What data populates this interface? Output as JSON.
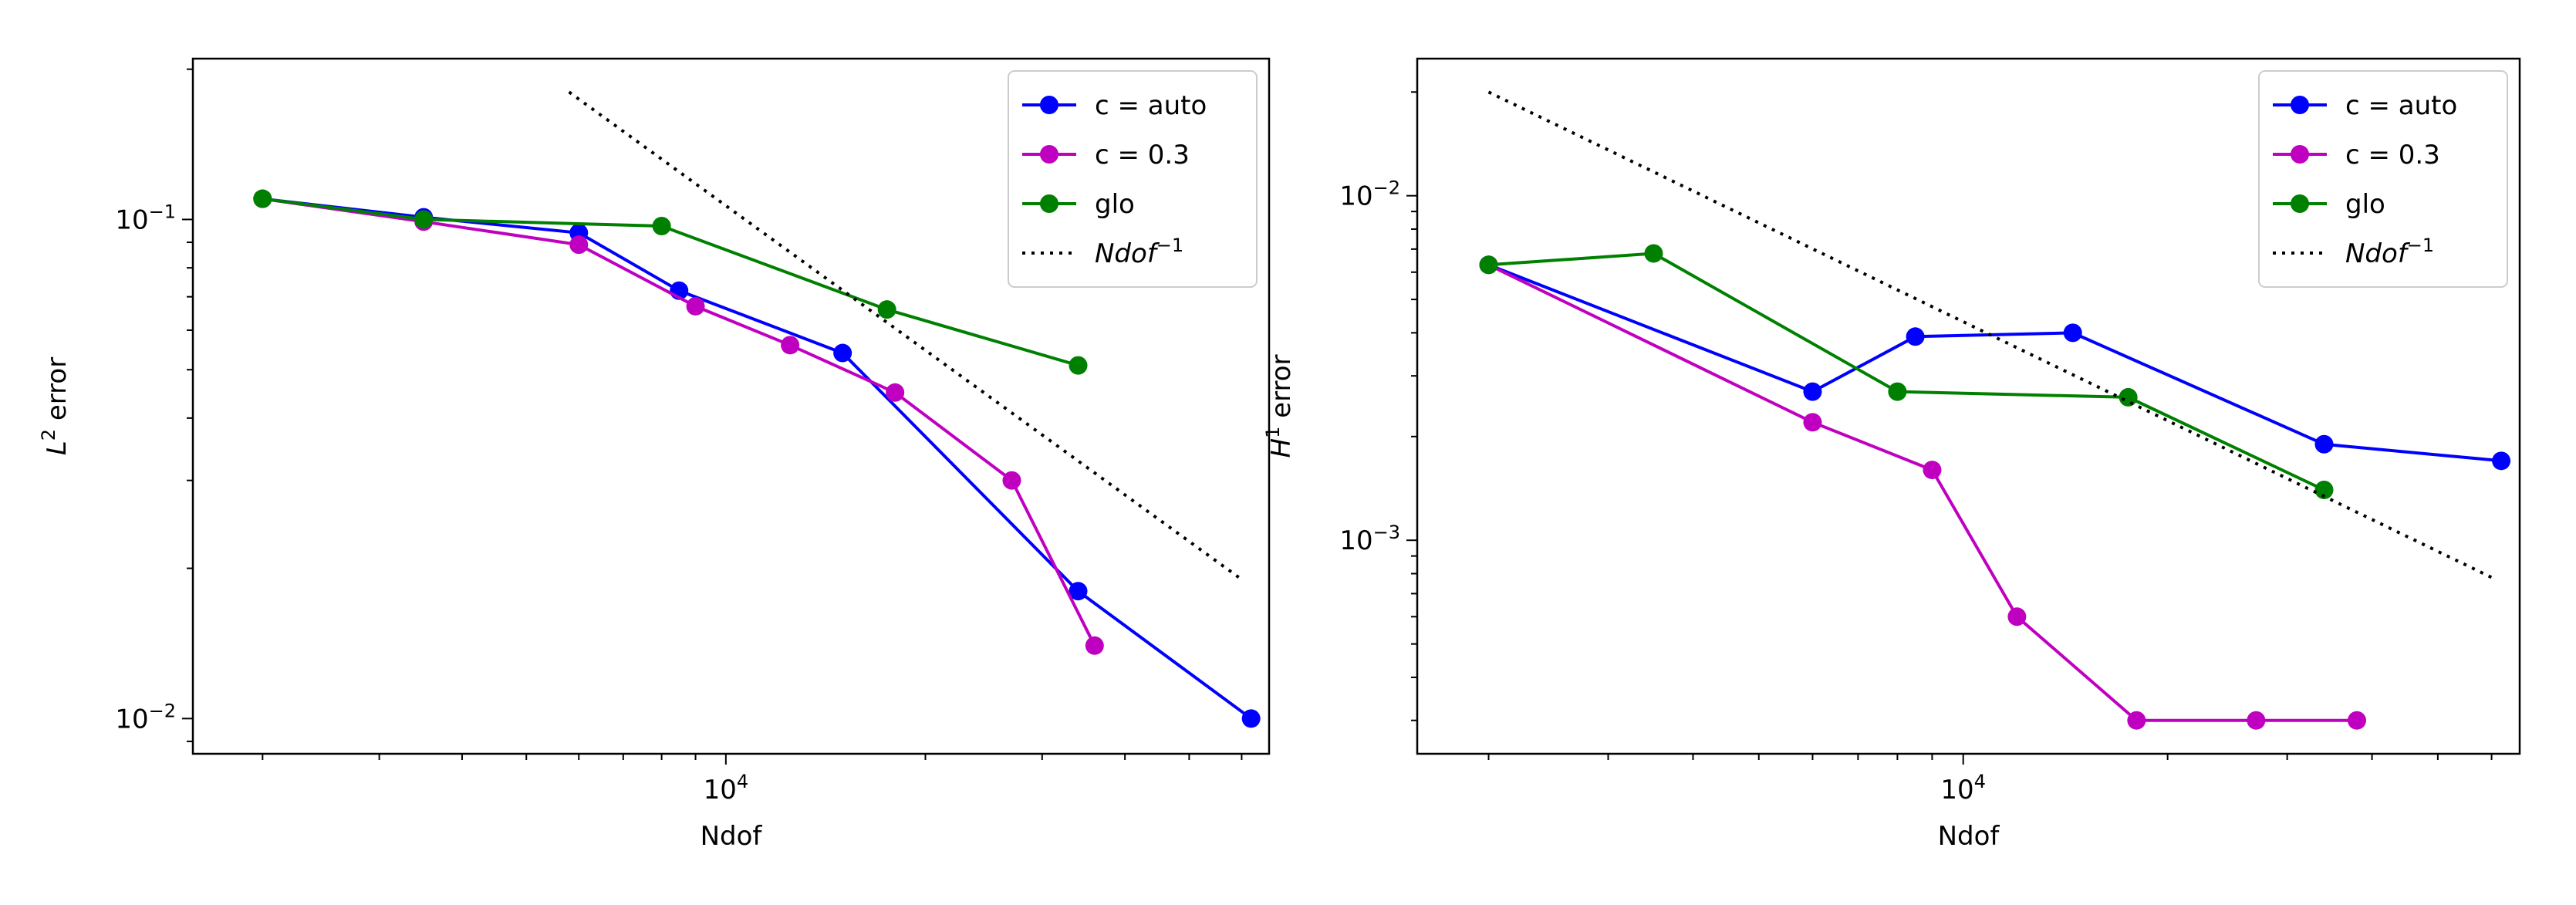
{
  "chart_data": [
    {
      "type": "line",
      "xscale": "log",
      "yscale": "log",
      "xlabel": "Ndof",
      "ylabel_base": "L",
      "ylabel_sup": "2",
      "ylabel_rest": " error",
      "xlim": [
        1570,
        66000
      ],
      "ylim": [
        0.0085,
        0.21
      ],
      "xticks": [
        {
          "value": 10000,
          "base": "10",
          "exp": "4"
        }
      ],
      "yticks": [
        {
          "value": 0.1,
          "base": "10",
          "exp": "−1"
        },
        {
          "value": 0.01,
          "base": "10",
          "exp": "−2"
        }
      ],
      "legend_position": "top-right",
      "series": [
        {
          "name": "c = auto",
          "color": "#0000ff",
          "style": "solid-marker",
          "x": [
            2000,
            3500,
            6000,
            8500,
            15000,
            34000,
            62000
          ],
          "y": [
            0.11,
            0.101,
            0.094,
            0.072,
            0.054,
            0.018,
            0.01
          ]
        },
        {
          "name": "c = 0.3",
          "color": "#c000c0",
          "style": "solid-marker",
          "x": [
            2000,
            3500,
            6000,
            9000,
            12500,
            18000,
            27000,
            36000
          ],
          "y": [
            0.11,
            0.099,
            0.089,
            0.067,
            0.056,
            0.045,
            0.03,
            0.014
          ]
        },
        {
          "name": "glo",
          "color": "#008000",
          "style": "solid-marker",
          "x": [
            2000,
            3500,
            8000,
            17500,
            34000
          ],
          "y": [
            0.11,
            0.1,
            0.097,
            0.066,
            0.051
          ]
        },
        {
          "name": "Ndof",
          "name_sup": "−1",
          "color": "#000000",
          "style": "dotted",
          "x": [
            5800,
            60000
          ],
          "y": [
            0.18,
            0.019
          ]
        }
      ]
    },
    {
      "type": "line",
      "xscale": "log",
      "yscale": "log",
      "xlabel": "Ndof",
      "ylabel_base": "H",
      "ylabel_sup": "1",
      "ylabel_rest": " error",
      "xlim": [
        1570,
        66000
      ],
      "ylim": [
        0.00024,
        0.025
      ],
      "xticks": [
        {
          "value": 10000,
          "base": "10",
          "exp": "4"
        }
      ],
      "yticks": [
        {
          "value": 0.01,
          "base": "10",
          "exp": "−2"
        },
        {
          "value": 0.001,
          "base": "10",
          "exp": "−3"
        }
      ],
      "legend_position": "top-right",
      "series": [
        {
          "name": "c = auto",
          "color": "#0000ff",
          "style": "solid-marker",
          "x": [
            2000,
            6000,
            8500,
            14500,
            34000,
            62000
          ],
          "y": [
            0.0063,
            0.0027,
            0.0039,
            0.004,
            0.0019,
            0.0017
          ]
        },
        {
          "name": "c = 0.3",
          "color": "#c000c0",
          "style": "solid-marker",
          "x": [
            2000,
            6000,
            9000,
            12000,
            18000,
            27000,
            38000
          ],
          "y": [
            0.0063,
            0.0022,
            0.0016,
            0.0006,
            0.0003,
            0.0003,
            0.0003
          ]
        },
        {
          "name": "glo",
          "color": "#008000",
          "style": "solid-marker",
          "x": [
            2000,
            3500,
            8000,
            17500,
            34000
          ],
          "y": [
            0.0063,
            0.0068,
            0.0027,
            0.0026,
            0.0014
          ]
        },
        {
          "name": "Ndof",
          "name_sup": "−1",
          "color": "#000000",
          "style": "dotted",
          "x": [
            2000,
            60000
          ],
          "y": [
            0.02,
            0.00078
          ]
        }
      ]
    }
  ]
}
